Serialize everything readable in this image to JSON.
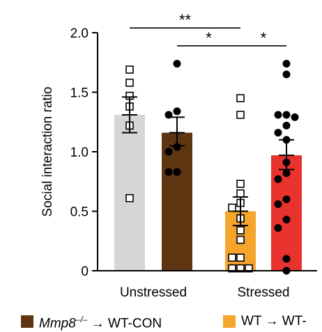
{
  "chart_data": {
    "type": "bar",
    "ylabel": "Social interaction ratio",
    "ylim": [
      0,
      2.0
    ],
    "yticks": [
      "0",
      "0.5",
      "1.0",
      "1.5",
      "2.0"
    ],
    "groups": [
      "Unstressed",
      "Stressed"
    ],
    "bars": [
      {
        "group": "Unstressed",
        "color": "#d6d6d6",
        "mean": 1.31,
        "sem_low": 1.16,
        "sem_high": 1.46,
        "marker": "open-square",
        "points": [
          1.69,
          1.58,
          1.47,
          1.38,
          1.22,
          0.61
        ]
      },
      {
        "group": "Unstressed",
        "color": "#5e3511",
        "mean": 1.16,
        "sem_low": 1.05,
        "sem_high": 1.29,
        "marker": "filled-circle",
        "points": [
          1.74,
          1.34,
          1.31,
          1.04,
          1.0,
          0.83,
          0.83
        ]
      },
      {
        "group": "Stressed",
        "color": "#f5a42c",
        "mean": 0.5,
        "sem_low": 0.38,
        "sem_high": 0.62,
        "marker": "open-square",
        "points": [
          1.45,
          1.31,
          0.73,
          0.65,
          0.57,
          0.53,
          0.44,
          0.34,
          0.26,
          0.11,
          0.11,
          0.02,
          0.02,
          0.02
        ]
      },
      {
        "group": "Stressed",
        "color": "#e8322e",
        "mean": 0.97,
        "sem_low": 0.85,
        "sem_high": 1.1,
        "marker": "filled-circle",
        "points": [
          1.74,
          1.65,
          1.31,
          1.31,
          1.29,
          1.22,
          1.16,
          1.1,
          0.91,
          0.82,
          0.77,
          0.6,
          0.56,
          0.43,
          0.36,
          0.1,
          0.0
        ]
      }
    ],
    "significance": [
      {
        "from": 0,
        "to": 2,
        "label": "**",
        "y": 2.04
      },
      {
        "from": 1,
        "to": 2,
        "label": "*",
        "y": 1.89
      },
      {
        "from": 2,
        "to": 3,
        "label": "*",
        "y": 1.89
      }
    ],
    "legend": [
      {
        "color": "#5e3511",
        "gene": "Mmp8",
        "superscript": "–/–",
        "rest": " → WT-CON"
      },
      {
        "color": "#f5a42c",
        "gene": "",
        "superscript": "",
        "rest": "WT → WT-"
      }
    ]
  }
}
